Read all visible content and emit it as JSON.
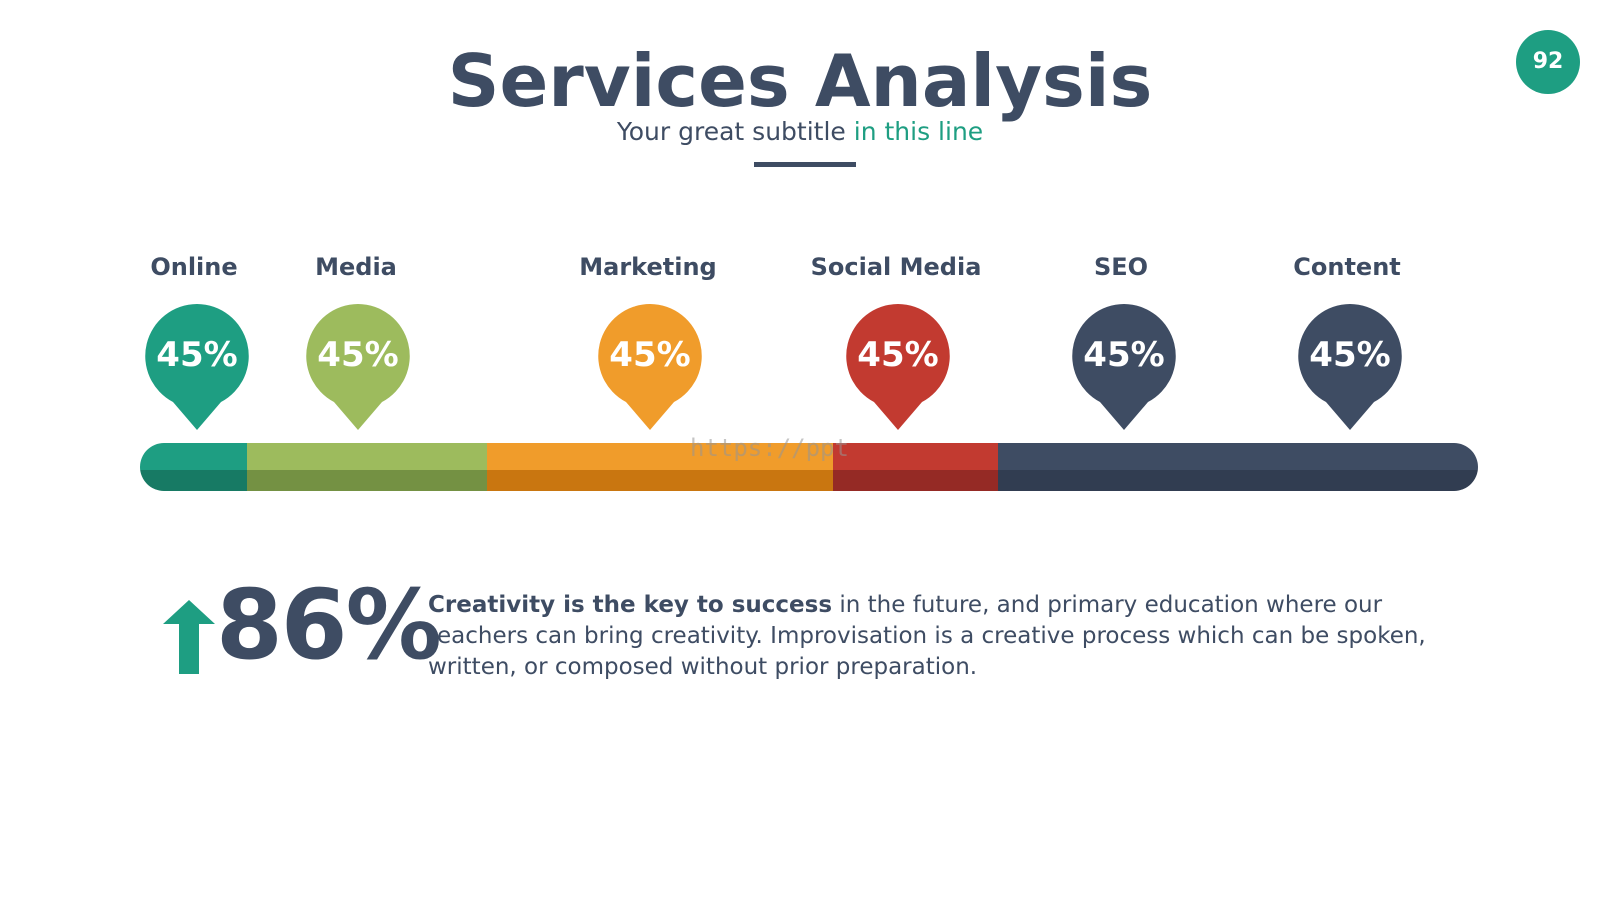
{
  "header": {
    "title": "Services Analysis",
    "subtitle_prefix": "Your great subtitle ",
    "subtitle_accent": "in this line",
    "page_number": "92"
  },
  "services": [
    {
      "label": "Online",
      "value": "45%",
      "color": "#1e9e82",
      "dark": "#177a64"
    },
    {
      "label": "Media",
      "value": "45%",
      "color": "#9dbb5d",
      "dark": "#749143"
    },
    {
      "label": "Marketing",
      "value": "45%",
      "color": "#f09c2b",
      "dark": "#c97610"
    },
    {
      "label": "Social Media",
      "value": "45%",
      "color": "#c23a30",
      "dark": "#952a25"
    },
    {
      "label": "SEO",
      "value": "45%",
      "color": "#3e4c63",
      "dark": "#313d51"
    },
    {
      "label": "Content",
      "value": "45%",
      "color": "#3e4c63",
      "dark": "#313d51"
    }
  ],
  "watermark": "https://ppt",
  "stat": {
    "number": "86%",
    "bold_text": "Creativity is the key to success",
    "body_text": " in the future, and primary education where our teachers can bring creativity. Improvisation is a creative process which can be spoken, written, or composed without prior preparation.",
    "arrow_color": "#1e9e82"
  }
}
